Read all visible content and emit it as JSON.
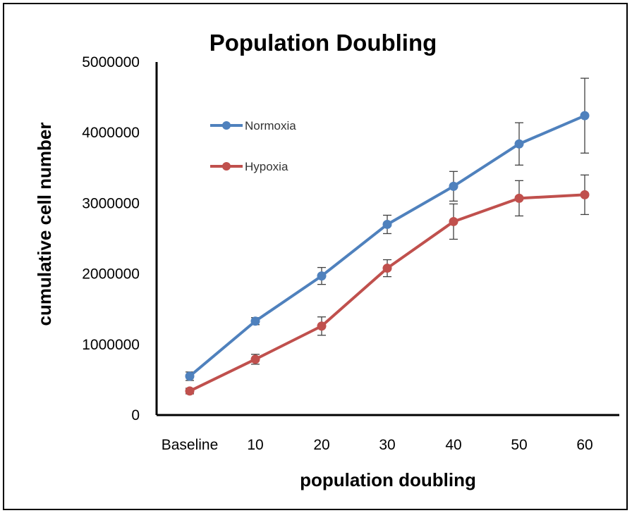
{
  "chart_data": {
    "type": "line",
    "title": "Population Doubling",
    "xlabel": "population doubling",
    "ylabel": "cumulative cell number",
    "categories": [
      "Baseline",
      "10",
      "20",
      "30",
      "40",
      "50",
      "60"
    ],
    "y_ticks": [
      "0",
      "1000000",
      "2000000",
      "3000000",
      "4000000",
      "5000000"
    ],
    "ylim": [
      0,
      5000000
    ],
    "grid": false,
    "legend_position": "upper-left inside plot",
    "series": [
      {
        "name": "Normoxia",
        "color": "#4f81bd",
        "values": [
          550000,
          1330000,
          1970000,
          2700000,
          3240000,
          3840000,
          4240000
        ],
        "errors": [
          60000,
          50000,
          120000,
          130000,
          210000,
          300000,
          530000
        ]
      },
      {
        "name": "Hypoxia",
        "color": "#c0504d",
        "values": [
          340000,
          790000,
          1260000,
          2080000,
          2740000,
          3070000,
          3120000
        ],
        "errors": [
          40000,
          70000,
          130000,
          120000,
          250000,
          250000,
          280000
        ]
      }
    ]
  }
}
